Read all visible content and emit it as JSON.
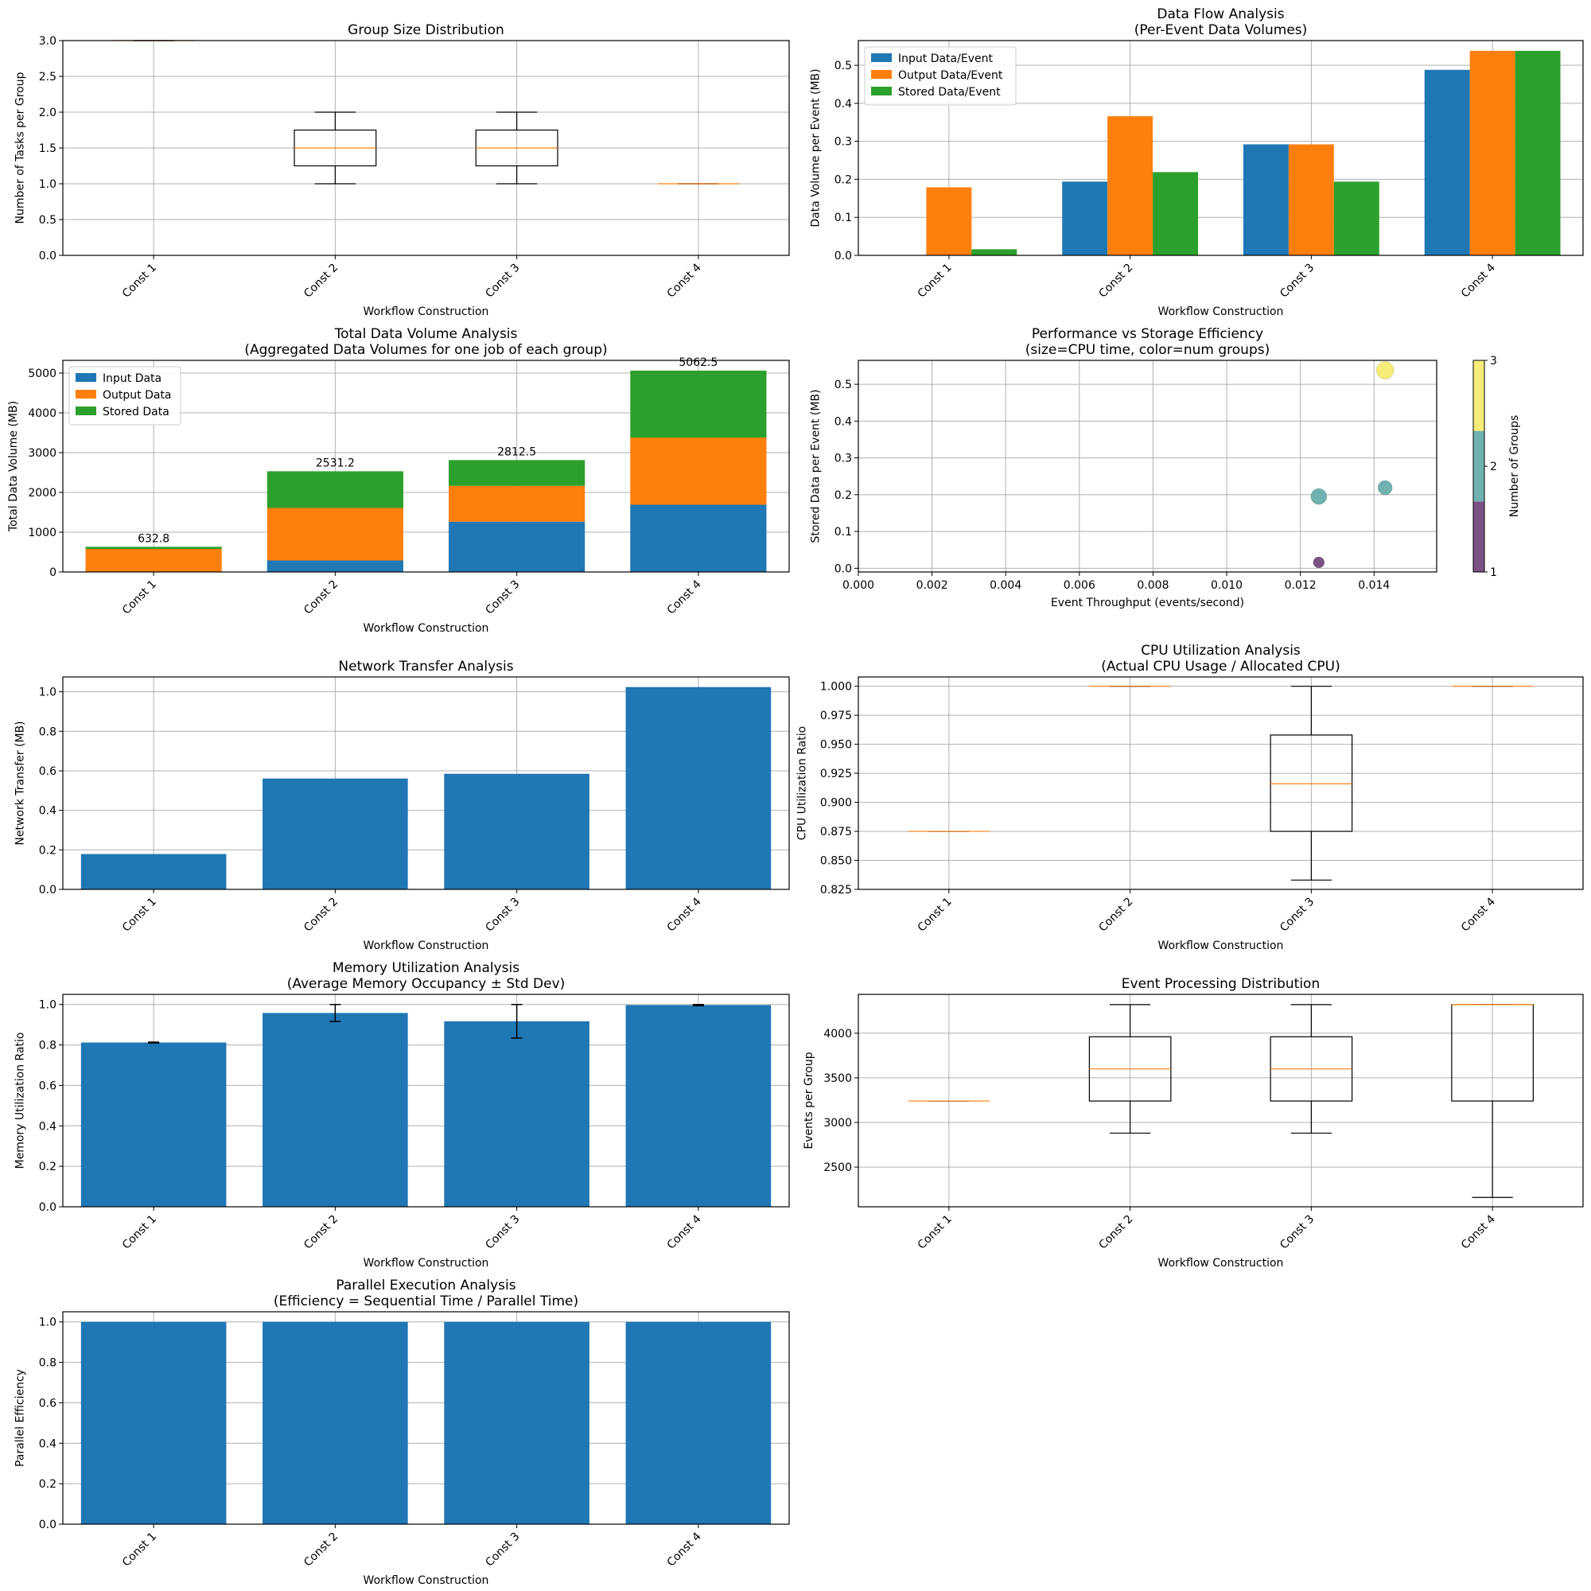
{
  "colors": {
    "blue": "#1f77b4",
    "orange": "#ff7f0e",
    "green": "#2ca02c",
    "purple": "#440154",
    "teal": "#21918c",
    "yellow": "#fde725"
  },
  "chart_data": [
    {
      "id": "group-size",
      "type": "box",
      "title": [
        "Group Size Distribution"
      ],
      "xlabel": "Workflow Construction",
      "ylabel": "Number of Tasks per Group",
      "categories": [
        "Const 1",
        "Const 2",
        "Const 3",
        "Const 4"
      ],
      "ylim": [
        0,
        3.0
      ],
      "yticks": [
        0.0,
        0.5,
        1.0,
        1.5,
        2.0,
        2.5,
        3.0
      ],
      "decimals": 1,
      "boxes": [
        {
          "wlo": 3,
          "q1": 3,
          "med": 3,
          "q3": 3,
          "whi": 3
        },
        {
          "wlo": 1,
          "q1": 1.25,
          "med": 1.5,
          "q3": 1.75,
          "whi": 2
        },
        {
          "wlo": 1,
          "q1": 1.25,
          "med": 1.5,
          "q3": 1.75,
          "whi": 2
        },
        {
          "wlo": 1,
          "q1": 1,
          "med": 1,
          "q3": 1,
          "whi": 1
        }
      ]
    },
    {
      "id": "data-flow",
      "type": "grouped-bar",
      "title": [
        "Data Flow Analysis",
        "(Per-Event Data Volumes)"
      ],
      "xlabel": "Workflow Construction",
      "ylabel": "Data Volume per Event (MB)",
      "categories": [
        "Const 1",
        "Const 2",
        "Const 3",
        "Const 4"
      ],
      "ylim": [
        0,
        0.565
      ],
      "yticks": [
        0.0,
        0.1,
        0.2,
        0.3,
        0.4,
        0.5
      ],
      "decimals": 1,
      "legend": "top-left",
      "series": [
        {
          "name": "Input Data/Event",
          "color": "#1f77b4",
          "values": [
            0.0,
            0.194,
            0.292,
            0.488
          ]
        },
        {
          "name": "Output Data/Event",
          "color": "#ff7f0e",
          "values": [
            0.179,
            0.366,
            0.292,
            0.538
          ]
        },
        {
          "name": "Stored Data/Event",
          "color": "#2ca02c",
          "values": [
            0.016,
            0.219,
            0.194,
            0.538
          ]
        }
      ]
    },
    {
      "id": "total-data",
      "type": "stacked-bar",
      "title": [
        "Total Data Volume Analysis",
        "(Aggregated Data Volumes for one job of each group)"
      ],
      "xlabel": "Workflow Construction",
      "ylabel": "Total Data Volume (MB)",
      "categories": [
        "Const 1",
        "Const 2",
        "Const 3",
        "Const 4"
      ],
      "ylim": [
        0,
        5320
      ],
      "yticks": [
        0,
        1000,
        2000,
        3000,
        4000,
        5000
      ],
      "decimals": 0,
      "legend": "top-left",
      "totals": [
        "632.8",
        "2531.2",
        "2812.5",
        "5062.5"
      ],
      "series": [
        {
          "name": "Input Data",
          "color": "#1f77b4",
          "values": [
            0,
            290,
            1265,
            1690
          ]
        },
        {
          "name": "Output Data",
          "color": "#ff7f0e",
          "values": [
            580,
            1320,
            900,
            1690
          ]
        },
        {
          "name": "Stored Data",
          "color": "#2ca02c",
          "values": [
            52.8,
            921.2,
            647.5,
            1682.5
          ]
        }
      ]
    },
    {
      "id": "perf-storage",
      "type": "scatter",
      "title": [
        "Performance vs Storage Efficiency",
        "(size=CPU time, color=num groups)"
      ],
      "xlabel": "Event Throughput (events/second)",
      "ylabel": "Stored Data per Event (MB)",
      "xlim": [
        0,
        0.0157
      ],
      "ylim": [
        -0.01,
        0.565
      ],
      "xticks": [
        0.0,
        0.002,
        0.004,
        0.006,
        0.008,
        0.01,
        0.012,
        0.014
      ],
      "xdecimals": 3,
      "yticks": [
        0.0,
        0.1,
        0.2,
        0.3,
        0.4,
        0.5
      ],
      "decimals": 1,
      "colorbar": {
        "label": "Number of Groups",
        "ticks": [
          "1",
          "2",
          "3"
        ],
        "colors": [
          "#7b5286",
          "#70b2b0",
          "#f6ec78"
        ]
      },
      "points": [
        {
          "x": 0.0125,
          "y": 0.016,
          "groups": 1,
          "size": 7,
          "color": "#7b5286"
        },
        {
          "x": 0.0125,
          "y": 0.195,
          "groups": 2,
          "size": 10,
          "color": "#70b2b0"
        },
        {
          "x": 0.0143,
          "y": 0.219,
          "groups": 2,
          "size": 9,
          "color": "#70b2b0"
        },
        {
          "x": 0.0143,
          "y": 0.538,
          "groups": 3,
          "size": 11,
          "color": "#f6ec78"
        }
      ]
    },
    {
      "id": "network",
      "type": "bar",
      "title": [
        "Network Transfer Analysis"
      ],
      "xlabel": "Workflow Construction",
      "ylabel": "Network Transfer (MB)",
      "categories": [
        "Const 1",
        "Const 2",
        "Const 3",
        "Const 4"
      ],
      "ylim": [
        0,
        1.075
      ],
      "yticks": [
        0.0,
        0.2,
        0.4,
        0.6,
        0.8,
        1.0
      ],
      "decimals": 1,
      "values": [
        0.179,
        0.561,
        0.585,
        1.024
      ]
    },
    {
      "id": "cpu-util",
      "type": "box",
      "title": [
        "CPU Utilization Analysis",
        "(Actual CPU Usage / Allocated CPU)"
      ],
      "xlabel": "Workflow Construction",
      "ylabel": "CPU Utilization Ratio",
      "categories": [
        "Const 1",
        "Const 2",
        "Const 3",
        "Const 4"
      ],
      "ylim": [
        0.825,
        1.008
      ],
      "yticks": [
        0.825,
        0.85,
        0.875,
        0.9,
        0.925,
        0.95,
        0.975,
        1.0
      ],
      "decimals": 3,
      "boxes": [
        {
          "wlo": 0.875,
          "q1": 0.875,
          "med": 0.875,
          "q3": 0.875,
          "whi": 0.875
        },
        {
          "wlo": 1.0,
          "q1": 1.0,
          "med": 1.0,
          "q3": 1.0,
          "whi": 1.0
        },
        {
          "wlo": 0.833,
          "q1": 0.875,
          "med": 0.916,
          "q3": 0.958,
          "whi": 1.0
        },
        {
          "wlo": 1.0,
          "q1": 1.0,
          "med": 1.0,
          "q3": 1.0,
          "whi": 1.0
        }
      ]
    },
    {
      "id": "memory-util",
      "type": "bar",
      "title": [
        "Memory Utilization Analysis",
        "(Average Memory Occupancy ± Std Dev)"
      ],
      "xlabel": "Workflow Construction",
      "ylabel": "Memory Utilization Ratio",
      "categories": [
        "Const 1",
        "Const 2",
        "Const 3",
        "Const 4"
      ],
      "ylim": [
        0,
        1.05
      ],
      "yticks": [
        0.0,
        0.2,
        0.4,
        0.6,
        0.8,
        1.0
      ],
      "decimals": 1,
      "values": [
        0.812,
        0.958,
        0.917,
        0.997
      ],
      "errors": [
        0.002,
        0.042,
        0.083,
        0.003
      ]
    },
    {
      "id": "event-proc",
      "type": "box",
      "title": [
        "Event Processing Distribution"
      ],
      "xlabel": "Workflow Construction",
      "ylabel": "Events per Group",
      "categories": [
        "Const 1",
        "Const 2",
        "Const 3",
        "Const 4"
      ],
      "ylim": [
        2055,
        4435
      ],
      "yticks": [
        2500,
        3000,
        3500,
        4000
      ],
      "decimals": 0,
      "boxes": [
        {
          "wlo": 3240,
          "q1": 3240,
          "med": 3240,
          "q3": 3240,
          "whi": 3240
        },
        {
          "wlo": 2880,
          "q1": 3240,
          "med": 3600,
          "q3": 3960,
          "whi": 4320
        },
        {
          "wlo": 2880,
          "q1": 3240,
          "med": 3600,
          "q3": 3960,
          "whi": 4320
        },
        {
          "wlo": 2160,
          "q1": 3240,
          "med": 4320,
          "q3": 4320,
          "whi": 4320
        }
      ]
    },
    {
      "id": "parallel",
      "type": "bar",
      "title": [
        "Parallel Execution Analysis",
        "(Efficiency = Sequential Time / Parallel Time)"
      ],
      "xlabel": "Workflow Construction",
      "ylabel": "Parallel Efficiency",
      "categories": [
        "Const 1",
        "Const 2",
        "Const 3",
        "Const 4"
      ],
      "ylim": [
        0,
        1.05
      ],
      "yticks": [
        0.0,
        0.2,
        0.4,
        0.6,
        0.8,
        1.0
      ],
      "decimals": 1,
      "values": [
        1.0,
        1.0,
        1.0,
        1.0
      ]
    }
  ]
}
